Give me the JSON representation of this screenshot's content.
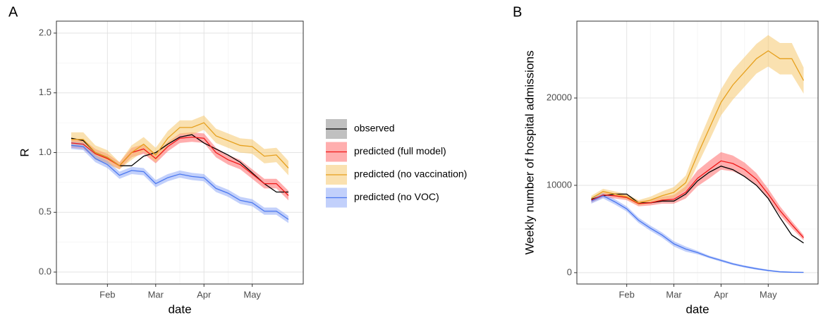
{
  "chart_data": [
    {
      "type": "line",
      "label": "A",
      "xlabel": "date",
      "ylabel": "R",
      "legend": "right",
      "grid": true,
      "categories": [
        null,
        null,
        null,
        "Feb",
        null,
        null,
        null,
        "Mar",
        null,
        null,
        null,
        "Apr",
        null,
        null,
        null,
        "May",
        null,
        null,
        null
      ],
      "ylim": [
        -0.1,
        2.1
      ],
      "yticks": [
        {
          "value": 0,
          "label": "0.0"
        },
        {
          "value": 0.5,
          "label": "0.5"
        },
        {
          "value": 1,
          "label": "1.0"
        },
        {
          "value": 1.5,
          "label": "1.5"
        },
        {
          "value": 2,
          "label": "2.0"
        }
      ],
      "series": [
        {
          "name": "observed",
          "color": "#000000",
          "fill": "#8c8c8c",
          "values": [
            1.12,
            1.1,
            1.0,
            0.96,
            0.89,
            0.89,
            0.97,
            1.0,
            1.07,
            1.13,
            1.15,
            1.08,
            1.03,
            0.98,
            0.92,
            0.83,
            0.74,
            0.67,
            0.67
          ]
        },
        {
          "name": "predicted (full model)",
          "color": "#f01818",
          "fill": "#ff6b6b",
          "values": [
            1.08,
            1.07,
            0.99,
            0.95,
            0.89,
            1.0,
            1.03,
            0.95,
            1.05,
            1.12,
            1.13,
            1.12,
            1.0,
            0.94,
            0.9,
            0.82,
            0.74,
            0.74,
            0.64
          ],
          "lower": [
            1.04,
            1.03,
            0.95,
            0.91,
            0.86,
            0.96,
            0.99,
            0.91,
            1.01,
            1.08,
            1.09,
            1.08,
            0.96,
            0.9,
            0.86,
            0.78,
            0.7,
            0.7,
            0.6
          ],
          "upper": [
            1.12,
            1.11,
            1.03,
            0.99,
            0.92,
            1.04,
            1.07,
            0.99,
            1.09,
            1.16,
            1.17,
            1.16,
            1.04,
            0.98,
            0.94,
            0.86,
            0.78,
            0.78,
            0.68
          ]
        },
        {
          "name": "predicted (no vaccination)",
          "color": "#e6a01e",
          "fill": "#f5c870",
          "values": [
            1.11,
            1.11,
            1.0,
            0.96,
            0.89,
            1.0,
            1.07,
            0.98,
            1.12,
            1.21,
            1.21,
            1.25,
            1.14,
            1.1,
            1.06,
            1.05,
            0.97,
            0.98,
            0.87
          ],
          "lower": [
            1.05,
            1.05,
            0.94,
            0.9,
            0.86,
            0.94,
            1.01,
            0.92,
            1.06,
            1.15,
            1.15,
            1.19,
            1.08,
            1.04,
            1.0,
            0.99,
            0.91,
            0.92,
            0.81
          ],
          "upper": [
            1.17,
            1.17,
            1.06,
            1.02,
            0.92,
            1.06,
            1.13,
            1.04,
            1.18,
            1.27,
            1.27,
            1.31,
            1.2,
            1.16,
            1.12,
            1.11,
            1.03,
            1.04,
            0.93
          ]
        },
        {
          "name": "predicted (no VOC)",
          "color": "#4b78f0",
          "fill": "#8fa9f7",
          "values": [
            1.06,
            1.05,
            0.95,
            0.9,
            0.81,
            0.85,
            0.84,
            0.74,
            0.79,
            0.82,
            0.8,
            0.79,
            0.7,
            0.66,
            0.6,
            0.58,
            0.51,
            0.51,
            0.44
          ],
          "lower": [
            1.03,
            1.02,
            0.92,
            0.87,
            0.78,
            0.82,
            0.81,
            0.71,
            0.76,
            0.79,
            0.77,
            0.76,
            0.67,
            0.63,
            0.57,
            0.55,
            0.48,
            0.48,
            0.41
          ],
          "upper": [
            1.09,
            1.08,
            0.98,
            0.93,
            0.84,
            0.88,
            0.87,
            0.77,
            0.82,
            0.85,
            0.83,
            0.82,
            0.73,
            0.69,
            0.63,
            0.61,
            0.54,
            0.54,
            0.47
          ]
        }
      ]
    },
    {
      "type": "line",
      "label": "B",
      "xlabel": "date",
      "ylabel": "Weekly number of hospital admissions",
      "grid": true,
      "categories": [
        null,
        null,
        null,
        "Feb",
        null,
        null,
        null,
        "Mar",
        null,
        null,
        null,
        "Apr",
        null,
        null,
        null,
        "May",
        null,
        null,
        null
      ],
      "ylim": [
        -1300,
        28800
      ],
      "yticks": [
        0,
        10000,
        20000
      ],
      "series": [
        {
          "color": "#000000",
          "values": [
            8400,
            8800,
            9000,
            9000,
            8000,
            8000,
            8200,
            8200,
            9000,
            10500,
            11500,
            12200,
            11800,
            11000,
            10000,
            8500,
            6300,
            4300,
            3400
          ]
        },
        {
          "color": "#f01818",
          "fill": "#ff6b6b",
          "values": [
            8300,
            8900,
            8800,
            8600,
            7900,
            8000,
            8300,
            8400,
            9200,
            10800,
            11800,
            12800,
            12500,
            11800,
            10700,
            9000,
            7100,
            5500,
            4000
          ],
          "lower": [
            8000,
            8600,
            8500,
            8300,
            7600,
            7700,
            7900,
            7900,
            8500,
            9900,
            10800,
            11800,
            11600,
            11000,
            10000,
            8400,
            6600,
            5100,
            3700
          ],
          "upper": [
            8600,
            9200,
            9100,
            8900,
            8200,
            8300,
            8700,
            8900,
            9900,
            11700,
            12800,
            13800,
            13400,
            12600,
            11400,
            9600,
            7600,
            5900,
            4300
          ]
        },
        {
          "color": "#e6a01e",
          "fill": "#f5c870",
          "values": [
            8500,
            9300,
            9000,
            8700,
            8000,
            8300,
            8800,
            9200,
            10300,
            13500,
            16500,
            19500,
            21500,
            23000,
            24500,
            25400,
            24500,
            24500,
            22000
          ],
          "lower": [
            8200,
            9000,
            8700,
            8400,
            7700,
            7900,
            8300,
            8600,
            9500,
            12300,
            15100,
            18000,
            19800,
            21300,
            22800,
            23600,
            22700,
            22700,
            20500
          ],
          "upper": [
            8800,
            9600,
            9300,
            9000,
            8300,
            8700,
            9300,
            9800,
            11100,
            14700,
            17900,
            21000,
            23200,
            24700,
            26200,
            27200,
            26300,
            26300,
            23500
          ]
        },
        {
          "color": "#4b78f0",
          "fill": "#8fa9f7",
          "values": [
            8200,
            8800,
            8100,
            7300,
            6000,
            5100,
            4300,
            3300,
            2700,
            2300,
            1800,
            1400,
            1000,
            700,
            450,
            250,
            100,
            50,
            30
          ],
          "lower": [
            7900,
            8500,
            7800,
            7000,
            5700,
            4800,
            4000,
            3000,
            2400,
            2100,
            1650,
            1250,
            870,
            570,
            330,
            150,
            20,
            -20,
            -30
          ],
          "upper": [
            8500,
            9100,
            8400,
            7600,
            6300,
            5400,
            4600,
            3600,
            3000,
            2500,
            1950,
            1550,
            1130,
            830,
            570,
            350,
            180,
            120,
            90
          ]
        }
      ]
    }
  ]
}
